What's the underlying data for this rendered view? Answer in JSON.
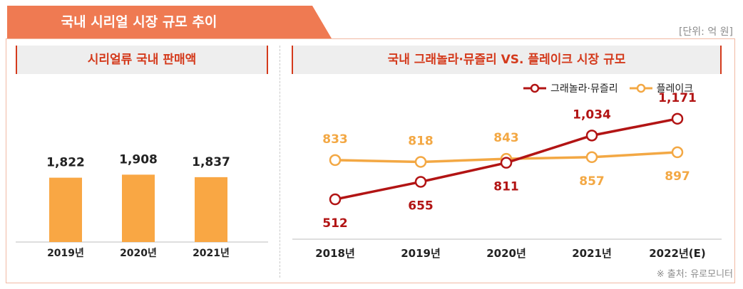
{
  "header": {
    "title": "국내 시리얼 시장 규모 추이",
    "unit": "[단위: 억 원]"
  },
  "left_panel": {
    "title": "시리얼류 국내 판매액"
  },
  "right_panel": {
    "title": "국내 그래놀라·뮤즐리 VS. 플레이크 시장 규모"
  },
  "legend": {
    "series1": "그래놀라·뮤즐리",
    "series2": "플레이크"
  },
  "source": "※ 출처: 유로모니터",
  "colors": {
    "bar": "#f9a744",
    "series1": "#b21414",
    "series2": "#f3a844",
    "accent": "#ef7a52"
  },
  "chart_data": [
    {
      "type": "bar",
      "title": "시리얼류 국내 판매액",
      "categories": [
        "2019년",
        "2020년",
        "2021년"
      ],
      "values": [
        1822,
        1908,
        1837
      ],
      "value_labels": [
        "1,822",
        "1,908",
        "1,837"
      ],
      "ylim": [
        0,
        2200
      ]
    },
    {
      "type": "line",
      "title": "국내 그래놀라·뮤즐리 VS. 플레이크 시장 규모",
      "categories": [
        "2018년",
        "2019년",
        "2020년",
        "2021년",
        "2022년(E)"
      ],
      "series": [
        {
          "name": "그래놀라·뮤즐리",
          "values": [
            512,
            655,
            811,
            1034,
            1171
          ],
          "labels": [
            "512",
            "655",
            "811",
            "1,034",
            "1,171"
          ],
          "label_positions": [
            "below",
            "below",
            "below",
            "above",
            "above"
          ]
        },
        {
          "name": "플레이크",
          "values": [
            833,
            818,
            843,
            857,
            897
          ],
          "labels": [
            "833",
            "818",
            "843",
            "857",
            "897"
          ],
          "label_positions": [
            "above",
            "above",
            "above",
            "below",
            "below"
          ]
        }
      ],
      "ylim": [
        300,
        1400
      ]
    }
  ]
}
